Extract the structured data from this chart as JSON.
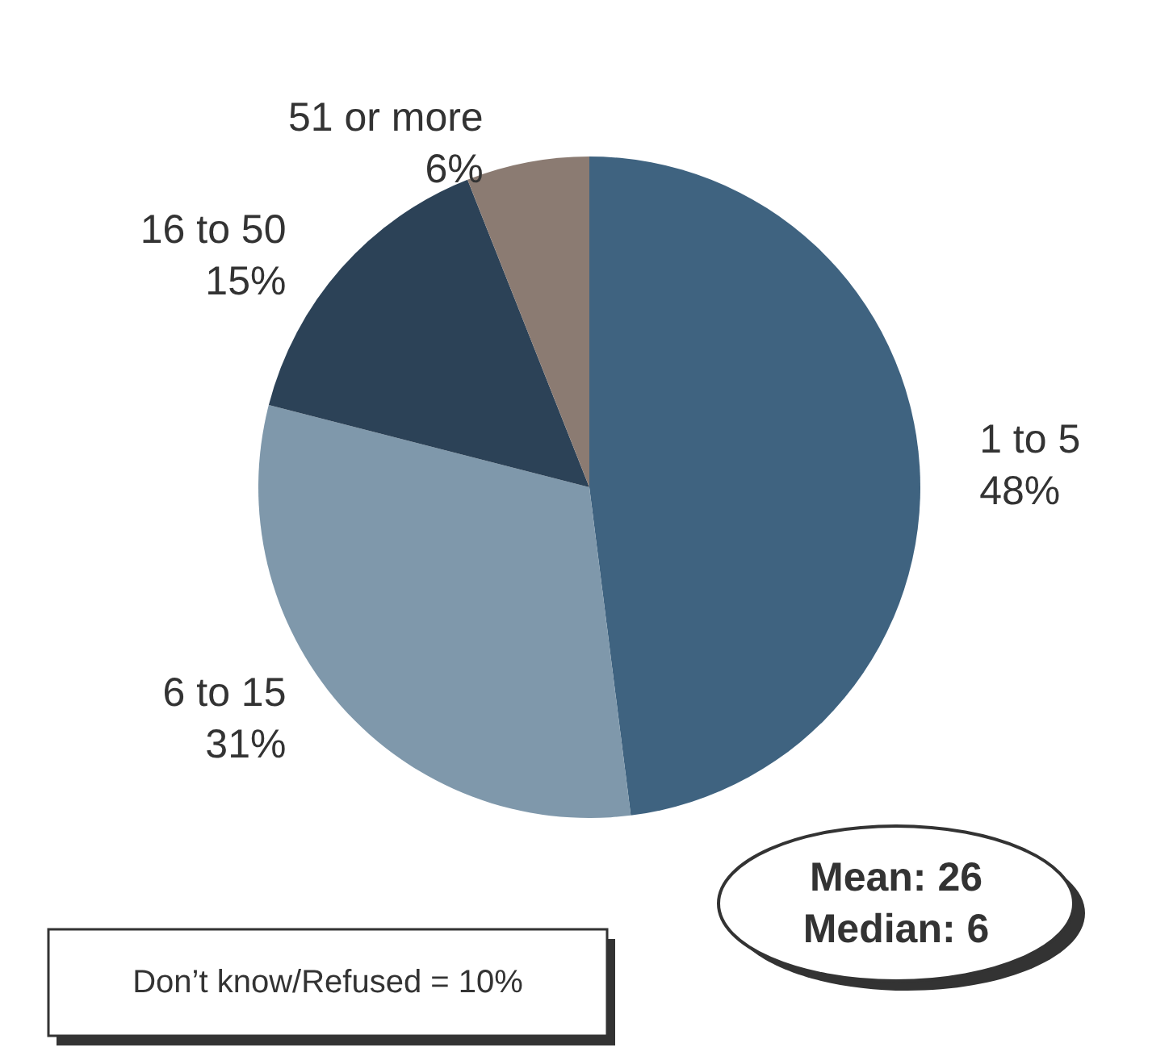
{
  "chart_data": {
    "type": "pie",
    "categories": [
      "1 to 5",
      "6 to 15",
      "16 to 50",
      "51 or more"
    ],
    "values": [
      48,
      31,
      15,
      6
    ],
    "value_labels": [
      "48%",
      "31%",
      "15%",
      "6%"
    ],
    "colors": [
      "#3f6380",
      "#7f98ab",
      "#2c4257",
      "#8b7b72"
    ],
    "annotations": [
      "Mean: 26\nMedian: 6",
      "Don’t know/Refused = 10%"
    ],
    "legend": false
  }
}
